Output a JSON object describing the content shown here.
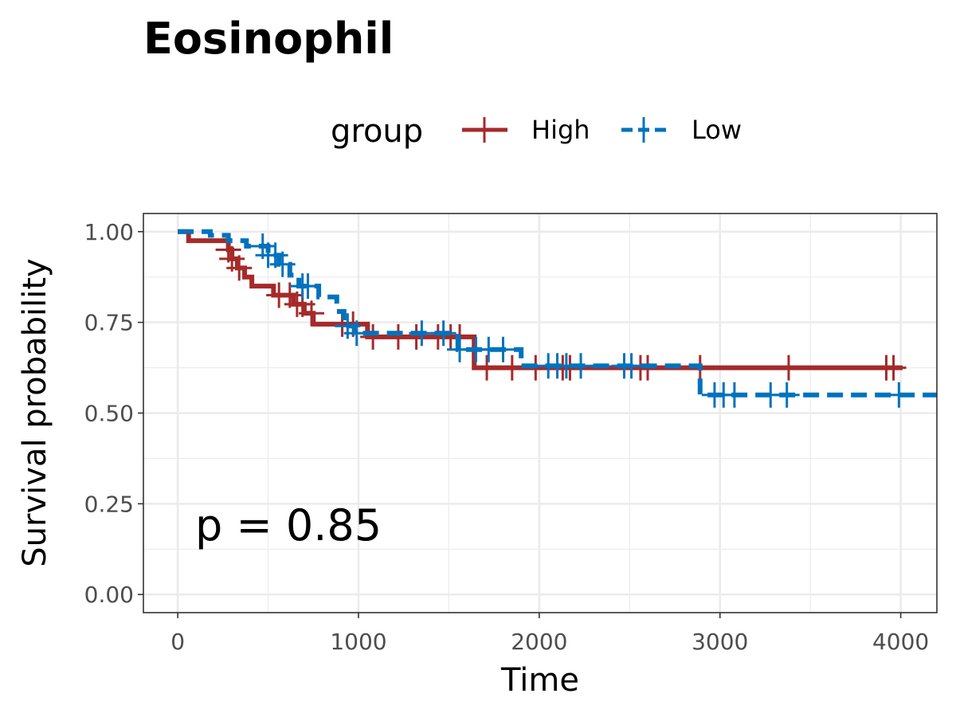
{
  "chart_data": {
    "type": "line",
    "subtype": "kaplan-meier",
    "title": "Eosinophil",
    "xlabel": "Time",
    "ylabel": "Survival probability",
    "xlim": [
      -190,
      4200
    ],
    "ylim": [
      -0.05,
      1.05
    ],
    "x_ticks": [
      0,
      1000,
      2000,
      3000,
      4000
    ],
    "x_tick_labels": [
      "0",
      "1000",
      "2000",
      "3000",
      "4000"
    ],
    "y_ticks": [
      0,
      0.25,
      0.5,
      0.75,
      1.0
    ],
    "y_tick_labels": [
      "0.00",
      "0.25",
      "0.50",
      "0.75",
      "1.00"
    ],
    "grid": true,
    "legend": {
      "title": "group",
      "position": "top"
    },
    "annotation": "p = 0.85",
    "series": [
      {
        "name": "High",
        "color": "#a52a2a",
        "linestyle": "solid",
        "steps": [
          [
            0,
            1.0
          ],
          [
            60,
            0.975
          ],
          [
            280,
            0.95
          ],
          [
            300,
            0.925
          ],
          [
            330,
            0.9
          ],
          [
            370,
            0.875
          ],
          [
            410,
            0.85
          ],
          [
            530,
            0.825
          ],
          [
            640,
            0.8
          ],
          [
            700,
            0.775
          ],
          [
            750,
            0.745
          ],
          [
            1050,
            0.71
          ],
          [
            1640,
            0.625
          ],
          [
            4010,
            0.625
          ]
        ],
        "censor_x": [
          280,
          300,
          340,
          560,
          620,
          660,
          690,
          740,
          910,
          970,
          1080,
          1220,
          1320,
          1440,
          1510,
          1560,
          1710,
          1850,
          1980,
          2130,
          2170,
          2560,
          2600,
          2890,
          3380,
          3920,
          3960
        ]
      },
      {
        "name": "Low",
        "color": "#0072bd",
        "linestyle": "dashed",
        "steps": [
          [
            0,
            1.0
          ],
          [
            180,
            0.99
          ],
          [
            280,
            0.975
          ],
          [
            380,
            0.96
          ],
          [
            500,
            0.935
          ],
          [
            560,
            0.91
          ],
          [
            620,
            0.88
          ],
          [
            670,
            0.85
          ],
          [
            780,
            0.82
          ],
          [
            880,
            0.78
          ],
          [
            920,
            0.74
          ],
          [
            980,
            0.72
          ],
          [
            1550,
            0.675
          ],
          [
            1900,
            0.63
          ],
          [
            2890,
            0.55
          ],
          [
            4200,
            0.55
          ]
        ],
        "censor_x": [
          470,
          500,
          540,
          580,
          690,
          720,
          940,
          990,
          1350,
          1470,
          1560,
          1650,
          1720,
          1800,
          2050,
          2100,
          2150,
          2230,
          2470,
          2510,
          2970,
          3020,
          3080,
          3280,
          3370,
          3990
        ]
      }
    ]
  }
}
